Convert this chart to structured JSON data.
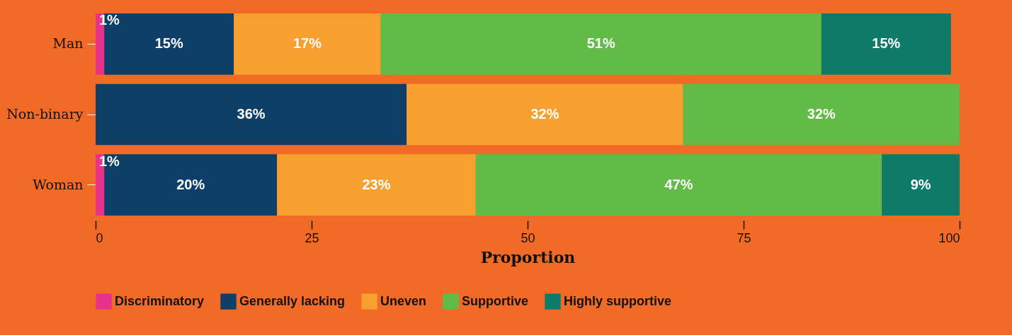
{
  "chart_data": {
    "type": "bar",
    "orientation": "horizontal",
    "stacked": true,
    "xlabel": "Proportion",
    "categories": [
      "Man",
      "Non-binary",
      "Woman"
    ],
    "series": [
      {
        "name": "Discriminatory",
        "color": "#e8318a",
        "values": [
          1,
          null,
          1
        ],
        "value_labels": [
          "1%",
          null,
          "1%"
        ]
      },
      {
        "name": "Generally lacking",
        "color": "#0d3f69",
        "values": [
          15,
          36,
          20
        ],
        "value_labels": [
          "15%",
          "36%",
          "20%"
        ]
      },
      {
        "name": "Uneven",
        "color": "#f7a030",
        "values": [
          17,
          32,
          23
        ],
        "value_labels": [
          "17%",
          "32%",
          "23%"
        ]
      },
      {
        "name": "Supportive",
        "color": "#62bb46",
        "values": [
          51,
          32,
          47
        ],
        "value_labels": [
          "51%",
          "32%",
          "47%"
        ]
      },
      {
        "name": "Highly supportive",
        "color": "#0e7a6a",
        "values": [
          15,
          null,
          9
        ],
        "value_labels": [
          "15%",
          null,
          "9%"
        ]
      }
    ],
    "xlim": [
      0,
      100
    ],
    "xticks": [
      0,
      25,
      50,
      75,
      100
    ],
    "grid": false,
    "legend": "bottom"
  }
}
